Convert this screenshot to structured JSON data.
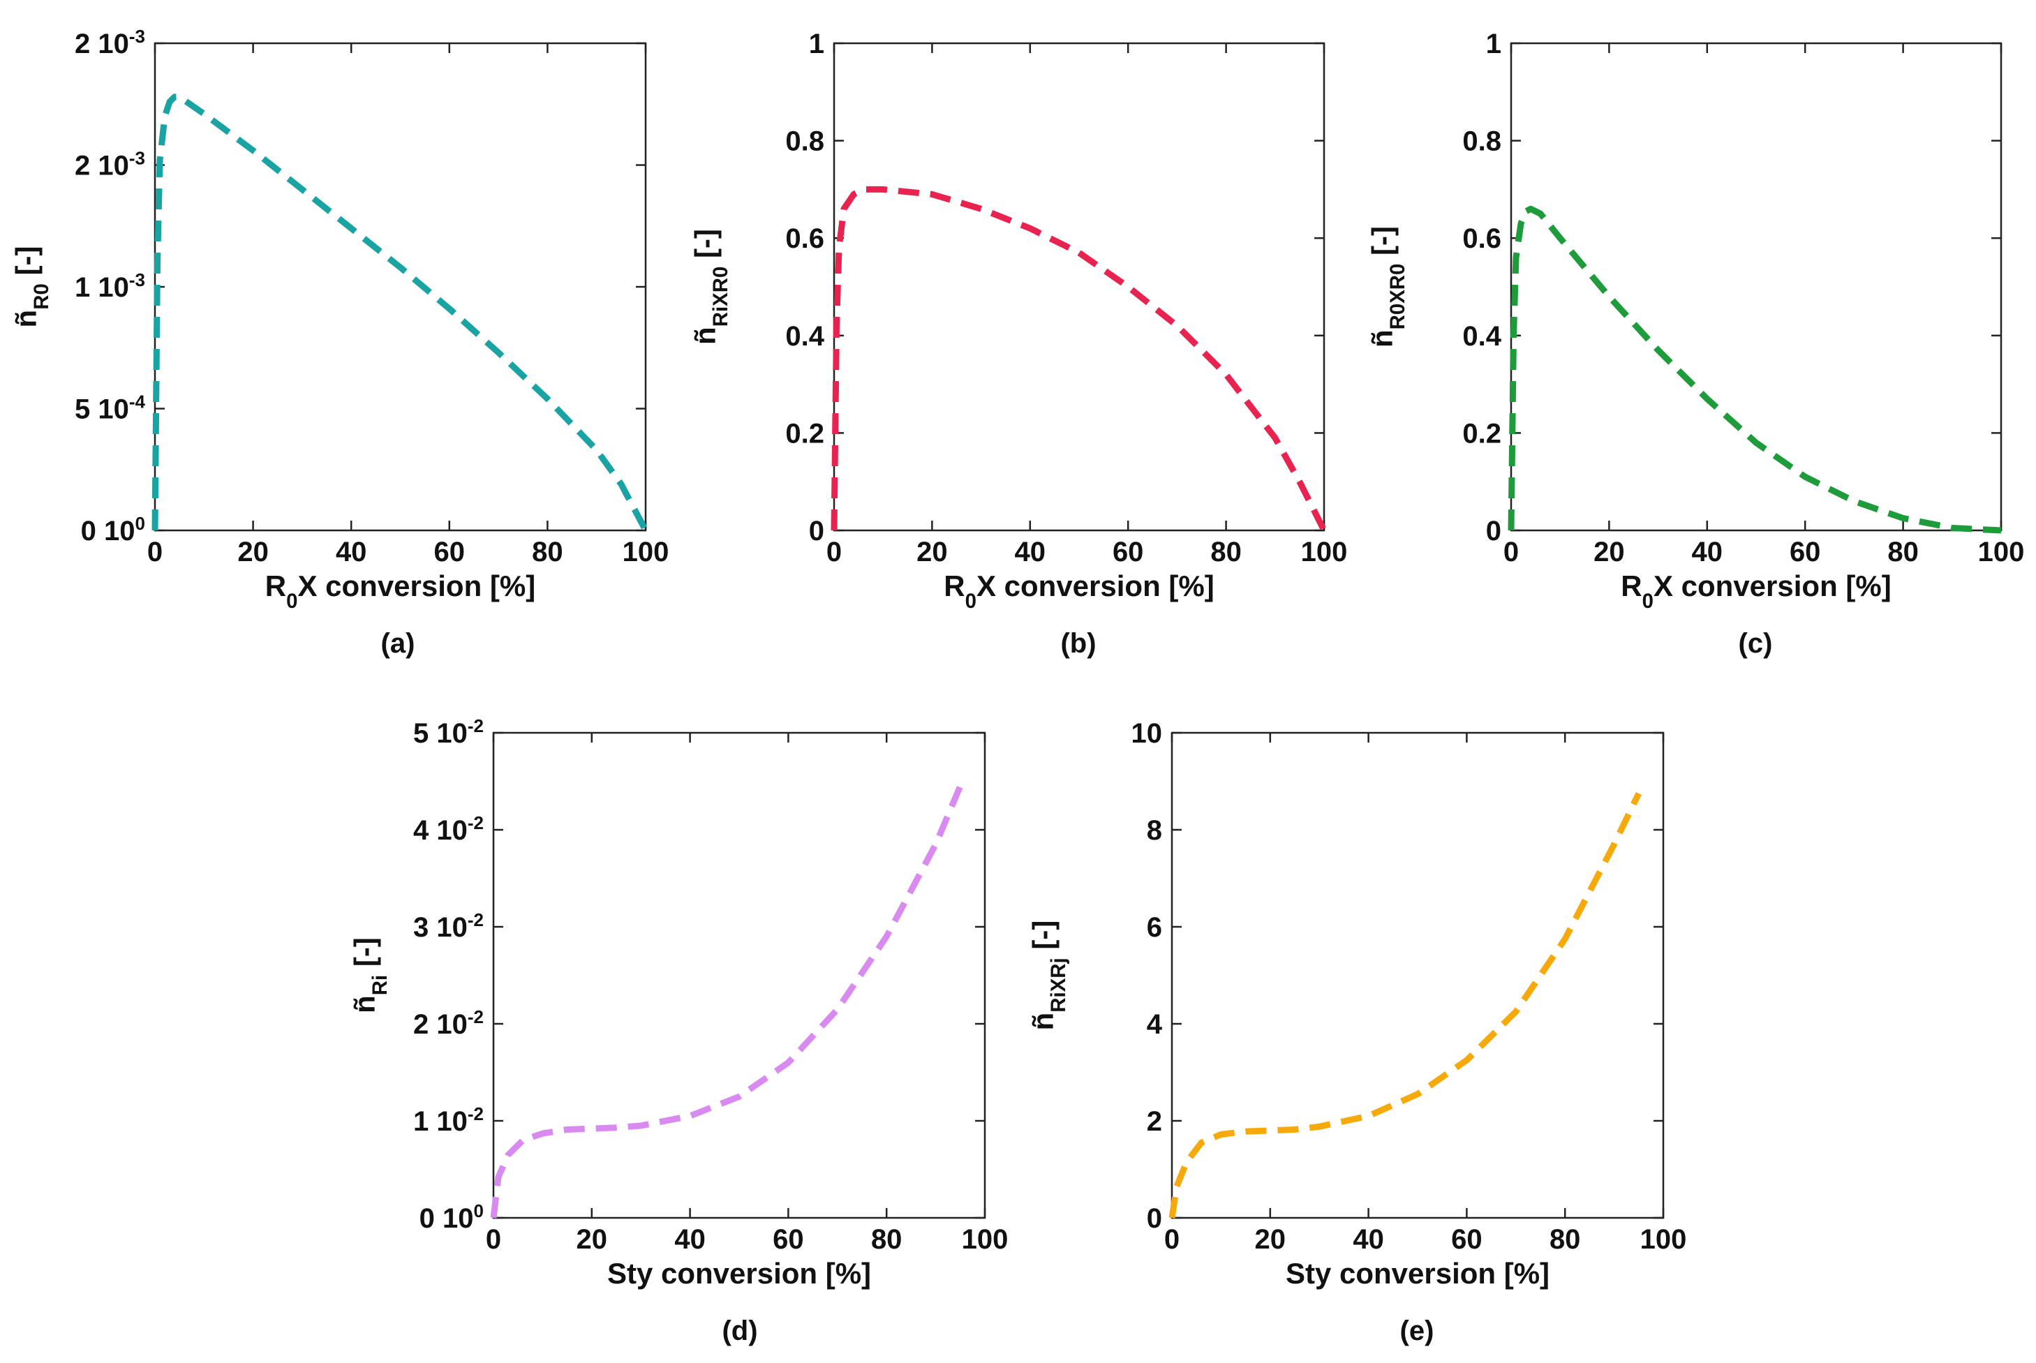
{
  "chart_data": [
    {
      "type": "line",
      "panel": "(a)",
      "xlabel_main": "R",
      "xlabel_sub": "0",
      "xlabel_rest": "X conversion [%]",
      "ylabel_main": "ñ",
      "ylabel_sub": "R0",
      "ylabel_rest": " [-]",
      "xlim": [
        0,
        100
      ],
      "ylim": [
        0,
        0.002
      ],
      "xticks": [
        0,
        20,
        40,
        60,
        80,
        100
      ],
      "yticks": [
        {
          "value": 0,
          "mantissa": "0 10",
          "exp": "0"
        },
        {
          "value": 0.0005,
          "mantissa": "5 10",
          "exp": "-4"
        },
        {
          "value": 0.001,
          "mantissa": "1 10",
          "exp": "-3"
        },
        {
          "value": 0.0015,
          "mantissa": "2 10",
          "exp": "-3"
        },
        {
          "value": 0.002,
          "mantissa": "2 10",
          "exp": "-3"
        }
      ],
      "color": "#1aa3a3",
      "series": [
        {
          "name": "R0",
          "x": [
            0,
            0.5,
            1,
            2,
            3,
            4,
            5,
            10,
            20,
            30,
            40,
            50,
            60,
            70,
            80,
            90,
            95,
            100
          ],
          "y": [
            0,
            0.0011,
            0.00152,
            0.0017,
            0.00176,
            0.00178,
            0.00178,
            0.00171,
            0.00156,
            0.0014,
            0.00124,
            0.00108,
            0.00091,
            0.00073,
            0.00054,
            0.00033,
            0.00019,
            0.0
          ]
        }
      ]
    },
    {
      "type": "line",
      "panel": "(b)",
      "xlabel_main": "R",
      "xlabel_sub": "0",
      "xlabel_rest": "X conversion [%]",
      "ylabel_main": "ñ",
      "ylabel_sub": "RiXR0",
      "ylabel_rest": " [-]",
      "xlim": [
        0,
        100
      ],
      "ylim": [
        0,
        1
      ],
      "xticks": [
        0,
        20,
        40,
        60,
        80,
        100
      ],
      "yticks": [
        {
          "value": 0,
          "mantissa": "0",
          "exp": ""
        },
        {
          "value": 0.2,
          "mantissa": "0.2",
          "exp": ""
        },
        {
          "value": 0.4,
          "mantissa": "0.4",
          "exp": ""
        },
        {
          "value": 0.6,
          "mantissa": "0.6",
          "exp": ""
        },
        {
          "value": 0.8,
          "mantissa": "0.8",
          "exp": ""
        },
        {
          "value": 1,
          "mantissa": "1",
          "exp": ""
        }
      ],
      "color": "#e8234f",
      "series": [
        {
          "name": "RiXR0",
          "x": [
            0,
            0.5,
            1,
            2,
            4,
            6,
            10,
            20,
            30,
            40,
            50,
            60,
            70,
            80,
            90,
            95,
            100
          ],
          "y": [
            0,
            0.42,
            0.58,
            0.66,
            0.69,
            0.7,
            0.7,
            0.69,
            0.66,
            0.62,
            0.57,
            0.5,
            0.42,
            0.32,
            0.19,
            0.1,
            0.0
          ]
        }
      ]
    },
    {
      "type": "line",
      "panel": "(c)",
      "xlabel_main": "R",
      "xlabel_sub": "0",
      "xlabel_rest": "X conversion [%]",
      "ylabel_main": "ñ",
      "ylabel_sub": "R0XR0",
      "ylabel_rest": " [-]",
      "xlim": [
        0,
        100
      ],
      "ylim": [
        0,
        1
      ],
      "xticks": [
        0,
        20,
        40,
        60,
        80,
        100
      ],
      "yticks": [
        {
          "value": 0,
          "mantissa": "0",
          "exp": ""
        },
        {
          "value": 0.2,
          "mantissa": "0.2",
          "exp": ""
        },
        {
          "value": 0.4,
          "mantissa": "0.4",
          "exp": ""
        },
        {
          "value": 0.6,
          "mantissa": "0.6",
          "exp": ""
        },
        {
          "value": 0.8,
          "mantissa": "0.8",
          "exp": ""
        },
        {
          "value": 1,
          "mantissa": "1",
          "exp": ""
        }
      ],
      "color": "#1e9b3a",
      "series": [
        {
          "name": "R0XR0",
          "x": [
            0,
            0.5,
            1,
            2,
            3,
            4,
            6,
            10,
            20,
            30,
            40,
            50,
            60,
            70,
            80,
            90,
            100
          ],
          "y": [
            0,
            0.4,
            0.56,
            0.63,
            0.655,
            0.66,
            0.65,
            0.6,
            0.48,
            0.37,
            0.27,
            0.18,
            0.11,
            0.06,
            0.025,
            0.005,
            0.0
          ]
        }
      ]
    },
    {
      "type": "line",
      "panel": "(d)",
      "xlabel_main": "Sty conversion [%]",
      "xlabel_sub": "",
      "xlabel_rest": "",
      "ylabel_main": "ñ",
      "ylabel_sub": "Ri",
      "ylabel_rest": " [-]",
      "xlim": [
        0,
        100
      ],
      "ylim": [
        0,
        0.05
      ],
      "xticks": [
        0,
        20,
        40,
        60,
        80,
        100
      ],
      "yticks": [
        {
          "value": 0,
          "mantissa": "0 10",
          "exp": "0"
        },
        {
          "value": 0.01,
          "mantissa": "1 10",
          "exp": "-2"
        },
        {
          "value": 0.02,
          "mantissa": "2 10",
          "exp": "-2"
        },
        {
          "value": 0.03,
          "mantissa": "3 10",
          "exp": "-2"
        },
        {
          "value": 0.04,
          "mantissa": "4 10",
          "exp": "-2"
        },
        {
          "value": 0.05,
          "mantissa": "5 10",
          "exp": "-2"
        }
      ],
      "color": "#d98af0",
      "series": [
        {
          "name": "Ri",
          "x": [
            0,
            1,
            3,
            6,
            10,
            15,
            20,
            25,
            30,
            40,
            50,
            60,
            70,
            80,
            90,
            95
          ],
          "y": [
            0,
            0.0042,
            0.0065,
            0.008,
            0.0087,
            0.0091,
            0.0092,
            0.0093,
            0.0095,
            0.0105,
            0.0125,
            0.016,
            0.0215,
            0.029,
            0.0385,
            0.0445
          ]
        }
      ]
    },
    {
      "type": "line",
      "panel": "(e)",
      "xlabel_main": "Sty conversion [%]",
      "xlabel_sub": "",
      "xlabel_rest": "",
      "ylabel_main": "ñ",
      "ylabel_sub": "RiXRj",
      "ylabel_rest": " [-]",
      "xlim": [
        0,
        100
      ],
      "ylim": [
        0,
        10
      ],
      "xticks": [
        0,
        20,
        40,
        60,
        80,
        100
      ],
      "yticks": [
        {
          "value": 0,
          "mantissa": "0",
          "exp": ""
        },
        {
          "value": 2,
          "mantissa": "2",
          "exp": ""
        },
        {
          "value": 4,
          "mantissa": "4",
          "exp": ""
        },
        {
          "value": 6,
          "mantissa": "6",
          "exp": ""
        },
        {
          "value": 8,
          "mantissa": "8",
          "exp": ""
        },
        {
          "value": 10,
          "mantissa": "10",
          "exp": ""
        }
      ],
      "color": "#f5a90a",
      "series": [
        {
          "name": "RiXRj",
          "x": [
            0,
            1,
            3,
            6,
            10,
            15,
            20,
            25,
            30,
            40,
            50,
            60,
            70,
            80,
            90,
            95
          ],
          "y": [
            0,
            0.65,
            1.15,
            1.55,
            1.72,
            1.78,
            1.8,
            1.82,
            1.88,
            2.1,
            2.55,
            3.25,
            4.25,
            5.75,
            7.7,
            8.75
          ]
        }
      ]
    }
  ]
}
